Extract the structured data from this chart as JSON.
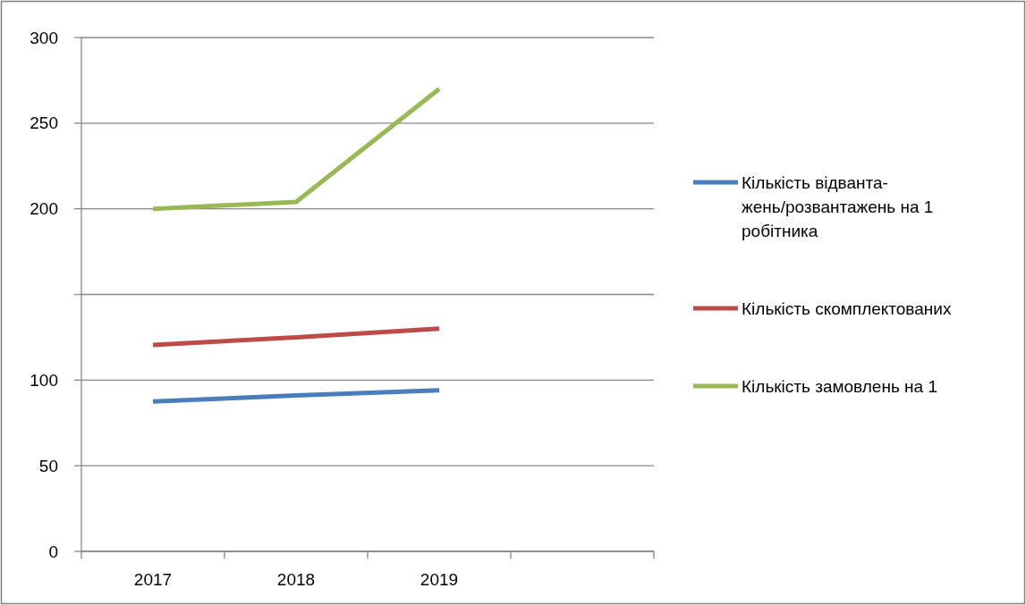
{
  "chart_data": {
    "type": "line",
    "categories": [
      "2017",
      "2018",
      "2019",
      null
    ],
    "series": [
      {
        "name": "Кількість відванта-\nжень/розвантажень на 1\nробітника",
        "color": "#4a7ebb",
        "values": [
          87.5,
          91,
          94,
          null
        ]
      },
      {
        "name": "Кількість скомплектованих",
        "color": "#be4b48",
        "values": [
          120.5,
          125,
          130,
          null
        ]
      },
      {
        "name": "Кількість замовлень на 1",
        "color": "#98b954",
        "values": [
          200,
          204,
          270,
          null
        ]
      }
    ],
    "ylim": [
      0,
      300
    ],
    "yticks": [
      0,
      50,
      100,
      {
        "value": 150,
        "label": null
      },
      200,
      250,
      300
    ],
    "grid": "y",
    "legend": "right",
    "marker": "none",
    "line_style": "solid"
  }
}
